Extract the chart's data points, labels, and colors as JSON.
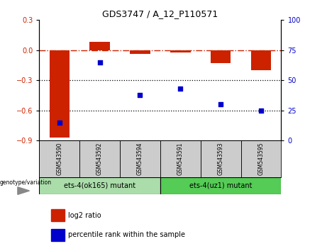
{
  "title": "GDS3747 / A_12_P110571",
  "samples": [
    "GSM543590",
    "GSM543592",
    "GSM543594",
    "GSM543591",
    "GSM543593",
    "GSM543595"
  ],
  "log2_ratio": [
    -0.87,
    0.08,
    -0.04,
    -0.02,
    -0.13,
    -0.2
  ],
  "percentile_rank": [
    15,
    65,
    38,
    43,
    30,
    25
  ],
  "bar_color": "#cc2200",
  "dot_color": "#0000cc",
  "ref_line_color": "#cc2200",
  "dotted_line_color": "#000000",
  "ylim_left": [
    -0.9,
    0.3
  ],
  "ylim_right": [
    0,
    100
  ],
  "yticks_left": [
    -0.9,
    -0.6,
    -0.3,
    0,
    0.3
  ],
  "yticks_right": [
    0,
    25,
    50,
    75,
    100
  ],
  "group1_label": "ets-4(ok165) mutant",
  "group2_label": "ets-4(uz1) mutant",
  "group1_indices": [
    0,
    1,
    2
  ],
  "group2_indices": [
    3,
    4,
    5
  ],
  "group_label_prefix": "genotype/variation",
  "legend_bar_label": "log2 ratio",
  "legend_dot_label": "percentile rank within the sample",
  "group1_color": "#aaddaa",
  "group2_color": "#55cc55",
  "sample_box_color": "#cccccc",
  "background_color": "#ffffff",
  "bar_width": 0.5
}
